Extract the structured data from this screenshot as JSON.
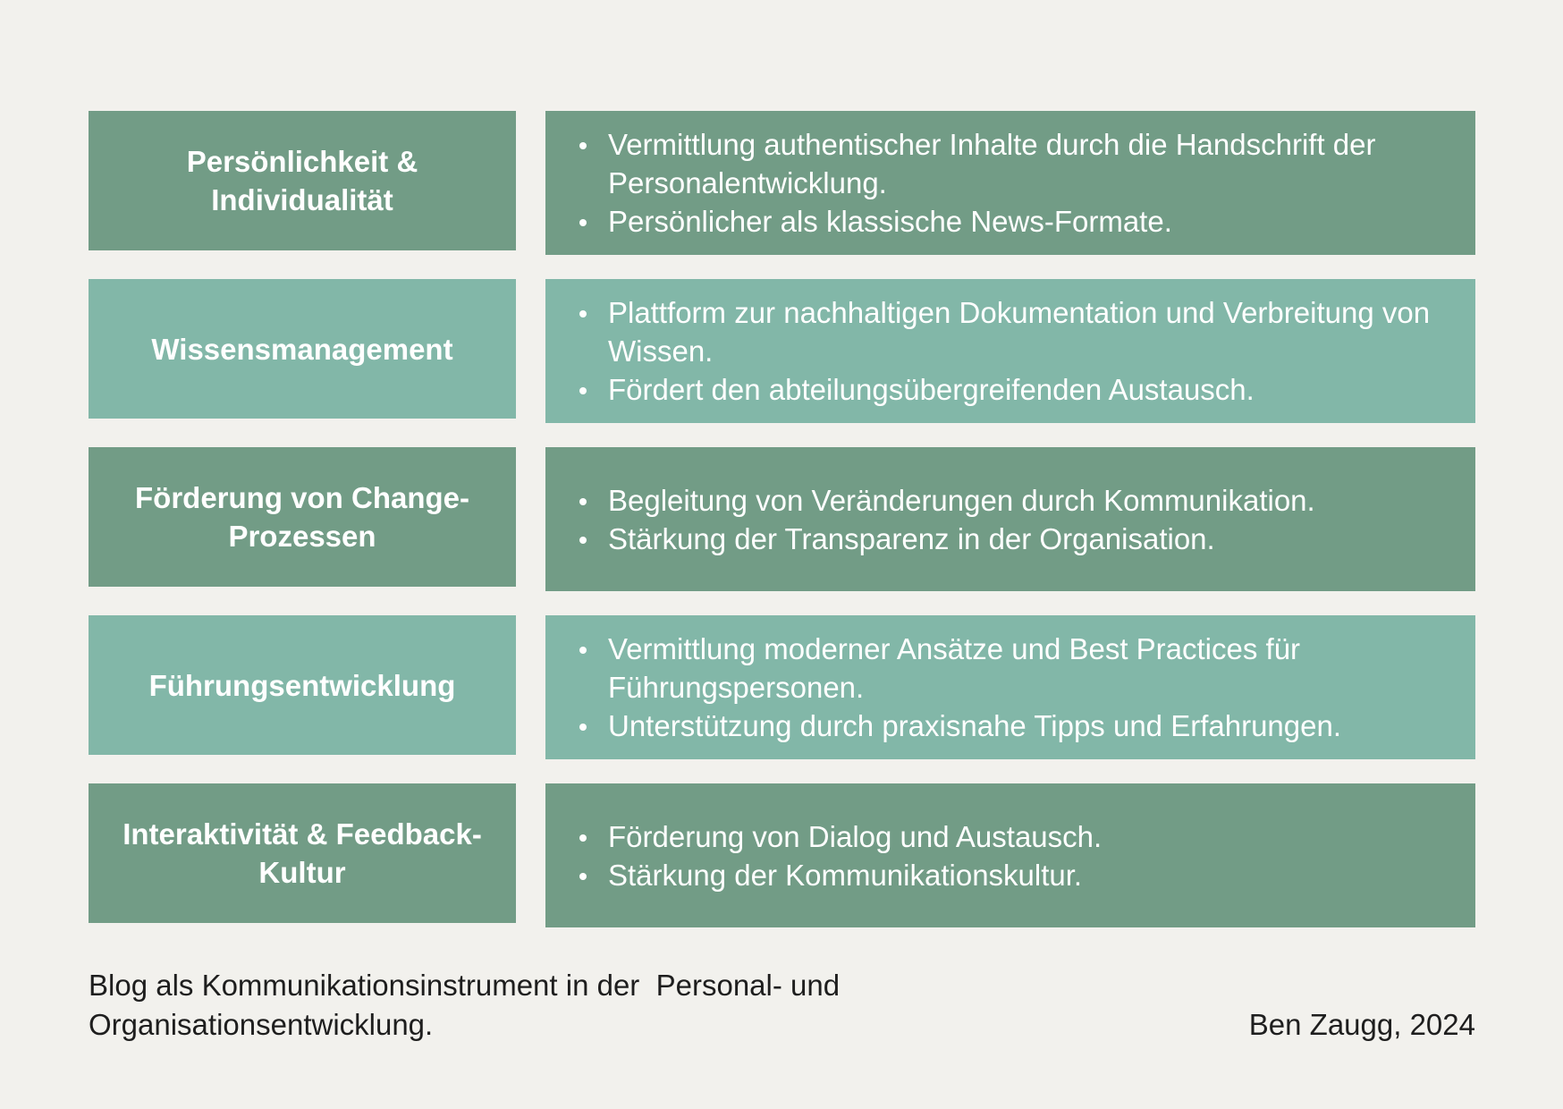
{
  "rows": [
    {
      "label": "Persönlichkeit & Individualität",
      "bullets": [
        "Vermittlung authentischer Inhalte durch die Handschrift der Personalentwicklung.",
        "Persönlicher als klassische News-Formate."
      ]
    },
    {
      "label": "Wissensmanagement",
      "bullets": [
        "Plattform zur nachhaltigen Dokumentation und Verbreitung von Wissen.",
        "Fördert den abteilungsübergreifenden Austausch."
      ]
    },
    {
      "label": "Förderung von Change-Prozessen",
      "bullets": [
        "Begleitung von Veränderungen durch Kommunikation.",
        "Stärkung der Transparenz in der Organisation."
      ]
    },
    {
      "label": "Führungsentwicklung",
      "bullets": [
        "Vermittlung moderner Ansätze und Best Practices für Führungspersonen.",
        "Unterstützung durch praxisnahe Tipps und Erfahrungen."
      ]
    },
    {
      "label": "Interaktivität & Feedback-Kultur",
      "bullets": [
        "Förderung von Dialog und Austausch.",
        "Stärkung der Kommunikationskultur."
      ]
    }
  ],
  "footer": {
    "caption_line1": "Blog als Kommunikationsinstrument in der  Personal- und",
    "caption_line2": "Organisationsentwicklung.",
    "author": "Ben Zaugg, 2024"
  },
  "colors": {
    "background": "#f2f1ed",
    "dark_green": "#729c86",
    "light_green": "#82b7a8",
    "text_light": "#ffffff",
    "text_dark": "#1e1e1e"
  }
}
